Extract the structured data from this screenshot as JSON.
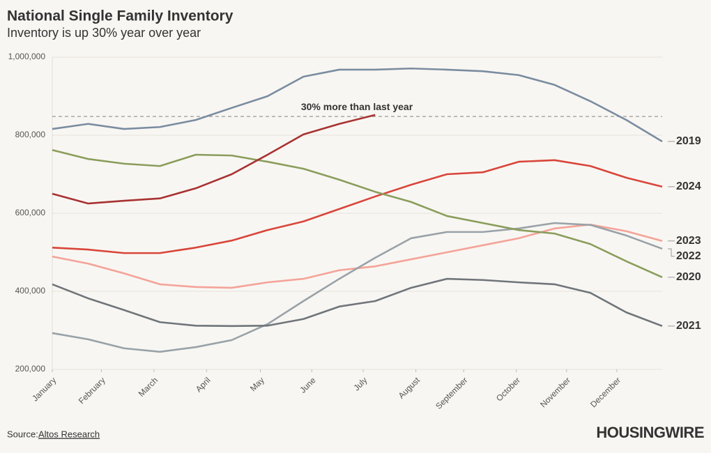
{
  "chart_data": {
    "type": "line",
    "title": "National Single Family Inventory",
    "subtitle": "Inventory is up 30% year over year",
    "source_label": "Source:",
    "source_link": "Altos Research",
    "brand": "HOUSINGWIRE",
    "annotation": {
      "text": "30% more than last year",
      "value": 848000
    },
    "x": [
      0,
      3,
      6,
      9,
      12,
      15,
      18,
      21,
      24,
      27,
      30,
      33,
      36,
      39,
      42,
      45,
      48,
      51
    ],
    "xlim": [
      0,
      51
    ],
    "xticks": [
      {
        "value": 0,
        "label": "January"
      },
      {
        "value": 4.1,
        "label": "February"
      },
      {
        "value": 8.5,
        "label": "March"
      },
      {
        "value": 12.9,
        "label": "April"
      },
      {
        "value": 17.4,
        "label": "May"
      },
      {
        "value": 21.7,
        "label": "June"
      },
      {
        "value": 26,
        "label": "July"
      },
      {
        "value": 30.4,
        "label": "August"
      },
      {
        "value": 34.4,
        "label": "September"
      },
      {
        "value": 38.8,
        "label": "October"
      },
      {
        "value": 43,
        "label": "November"
      },
      {
        "value": 47.2,
        "label": "December"
      }
    ],
    "ylim": [
      200000,
      1000000
    ],
    "yticks": [
      {
        "value": 200000,
        "label": "200,000"
      },
      {
        "value": 400000,
        "label": "400,000"
      },
      {
        "value": 600000,
        "label": "600,000"
      },
      {
        "value": 800000,
        "label": "800,000"
      },
      {
        "value": 1000000,
        "label": "1,000,000"
      }
    ],
    "grid": true,
    "series": [
      {
        "name": "2019",
        "color": "#7a8ca0",
        "values": [
          816000,
          829000,
          816000,
          821000,
          839000,
          870000,
          900000,
          950000,
          968000,
          968000,
          971000,
          968000,
          964000,
          954000,
          929000,
          887000,
          839000,
          784000
        ]
      },
      {
        "name": "2024",
        "color": "#d9453a",
        "values": [
          512000,
          507000,
          498000,
          498000,
          512000,
          530000,
          557000,
          579000,
          611000,
          643000,
          673000,
          700000,
          705000,
          732000,
          736000,
          721000,
          691000,
          668000
        ]
      },
      {
        "name": "2023",
        "color": "#f4a399",
        "values": [
          489000,
          471000,
          446000,
          418000,
          411000,
          409000,
          423000,
          432000,
          454000,
          464000,
          482000,
          500000,
          518000,
          536000,
          561000,
          571000,
          554000,
          529000
        ]
      },
      {
        "name": "2022",
        "color": "#98a2a8",
        "values": [
          293000,
          277000,
          254000,
          245000,
          257000,
          275000,
          316000,
          375000,
          432000,
          486000,
          536000,
          552000,
          552000,
          561000,
          575000,
          570000,
          543000,
          509000
        ]
      },
      {
        "name": "2020",
        "color": "#8a9d5c",
        "values": [
          762000,
          739000,
          727000,
          721000,
          750000,
          748000,
          732000,
          714000,
          686000,
          655000,
          629000,
          593000,
          575000,
          557000,
          548000,
          521000,
          477000,
          436000
        ]
      },
      {
        "name": "2021",
        "color": "#6f757a",
        "values": [
          418000,
          382000,
          352000,
          321000,
          312000,
          311000,
          312000,
          329000,
          361000,
          375000,
          409000,
          432000,
          429000,
          423000,
          418000,
          396000,
          346000,
          311000
        ]
      },
      {
        "color": "#a83232",
        "values": [
          650000,
          625000,
          632000,
          638000,
          664000,
          700000,
          750000,
          802000,
          829000,
          852000,
          null,
          null,
          null,
          null,
          null,
          null,
          null,
          null
        ]
      }
    ]
  }
}
